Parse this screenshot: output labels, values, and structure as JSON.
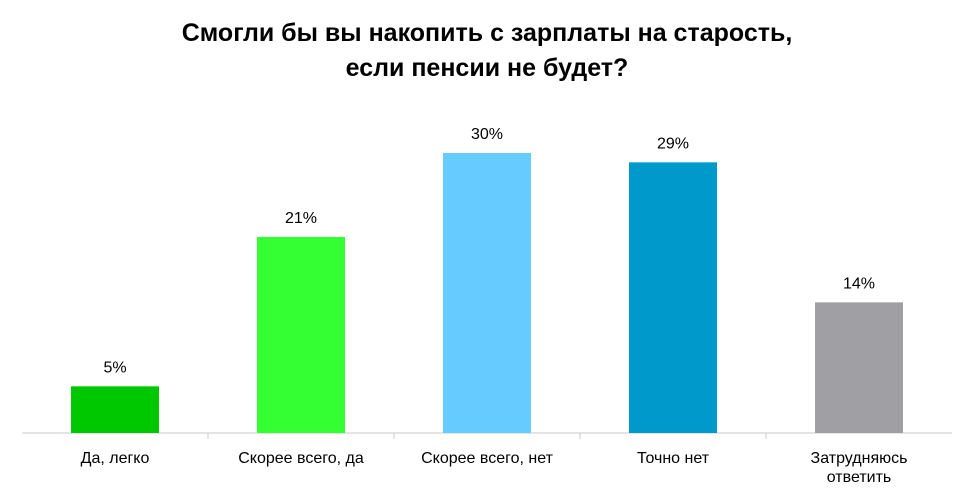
{
  "chart_data": {
    "type": "bar",
    "title": "Смогли бы вы накопить с зарплаты на старость,\nесли пенсии не будет?",
    "categories": [
      "Да, легко",
      "Скорее всего, да",
      "Скорее всего, нет",
      "Точно нет",
      "Затрудняюсь ответить"
    ],
    "values": [
      5,
      21,
      30,
      29,
      14
    ],
    "value_labels": [
      "5%",
      "21%",
      "30%",
      "29%",
      "14%"
    ],
    "colors": [
      "#00c800",
      "#33ff33",
      "#66ccff",
      "#0099cc",
      "#a0a0a4"
    ]
  }
}
